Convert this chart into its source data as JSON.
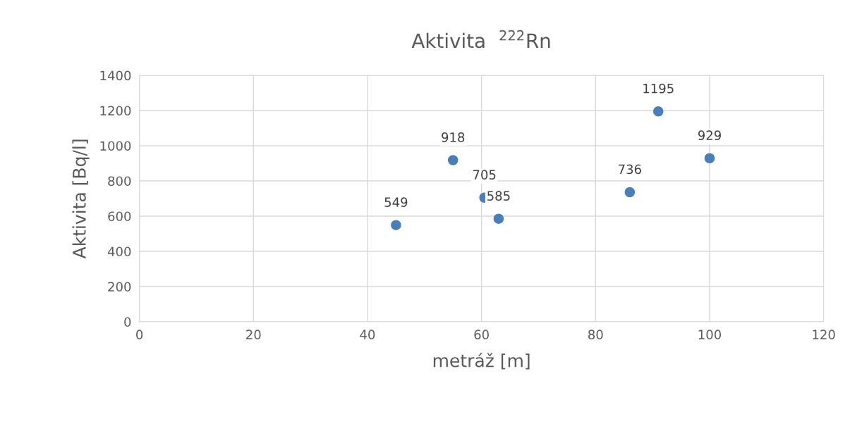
{
  "chart_data": {
    "type": "scatter",
    "title": "Aktivita  $^{222}$Rn",
    "xlabel": "metráž [m]",
    "ylabel": "Aktivita [Bq/l]",
    "x": [
      45,
      55,
      60.5,
      63,
      86,
      91,
      100
    ],
    "series": [
      {
        "color": "#4a7ebb",
        "values": [
          549,
          918,
          705,
          585,
          736,
          1195,
          929
        ]
      }
    ],
    "xlim": [
      0,
      120
    ],
    "xticks": [
      0,
      20,
      40,
      60,
      80,
      100,
      120
    ],
    "ylim": [
      0,
      1400
    ],
    "yticks": [
      0,
      200,
      400,
      600,
      800,
      1000,
      1200,
      1400
    ],
    "grid": true,
    "marker": "circle",
    "data_labels": true
  }
}
